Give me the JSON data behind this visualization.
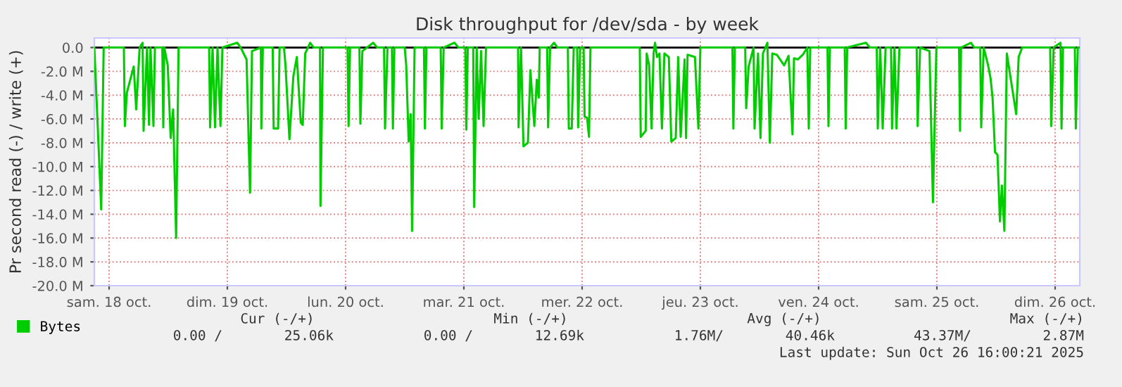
{
  "chart_data": {
    "type": "line",
    "title": "Disk throughput for /dev/sda - by week",
    "ylabel": "Pr second read (-) / write (+)",
    "x": [
      "2025-10-17T21:00",
      "2025-10-17T21:42",
      "2025-10-17T22:24",
      "2025-10-17T22:54",
      "2025-10-18T03:00",
      "2025-10-18T03:12",
      "2025-10-18T03:36",
      "2025-10-18T05:00",
      "2025-10-18T05:30",
      "2025-10-18T06:12",
      "2025-10-18T06:48",
      "2025-10-18T07:00",
      "2025-10-18T07:42",
      "2025-10-18T08:06",
      "2025-10-18T08:24",
      "2025-10-18T09:00",
      "2025-10-18T09:18",
      "2025-10-18T10:48",
      "2025-10-18T11:00",
      "2025-10-18T11:12",
      "2025-10-18T11:54",
      "2025-10-18T12:30",
      "2025-10-18T13:00",
      "2025-10-18T13:36",
      "2025-10-18T14:06",
      "2025-10-18T20:18",
      "2025-10-18T20:30",
      "2025-10-18T21:00",
      "2025-10-18T21:30",
      "2025-10-18T22:00",
      "2025-10-18T22:36",
      "2025-10-18T23:00",
      "2025-10-19T02:00",
      "2025-10-19T02:42",
      "2025-10-19T03:54",
      "2025-10-19T04:36",
      "2025-10-19T05:00",
      "2025-10-19T06:48",
      "2025-10-19T06:54",
      "2025-10-19T07:12",
      "2025-10-19T09:12",
      "2025-10-19T09:24",
      "2025-10-19T10:18",
      "2025-10-19T10:36",
      "2025-10-19T11:30",
      "2025-10-19T11:48",
      "2025-10-19T12:36",
      "2025-10-19T13:24",
      "2025-10-19T14:06",
      "2025-10-19T14:54",
      "2025-10-19T15:18",
      "2025-10-19T15:48",
      "2025-10-19T16:48",
      "2025-10-19T17:30",
      "2025-10-19T18:48",
      "2025-10-19T18:54",
      "2025-10-19T19:24",
      "2025-10-20T00:24",
      "2025-10-20T00:36",
      "2025-10-20T00:54",
      "2025-10-20T02:48",
      "2025-10-20T03:00",
      "2025-10-20T03:24",
      "2025-10-20T05:36",
      "2025-10-20T06:24",
      "2025-10-20T07:48",
      "2025-10-20T08:00",
      "2025-10-20T08:30",
      "2025-10-20T09:24",
      "2025-10-20T09:36",
      "2025-10-20T09:54",
      "2025-10-20T12:00",
      "2025-10-20T12:18",
      "2025-10-20T12:48",
      "2025-10-20T13:12",
      "2025-10-20T13:30",
      "2025-10-20T14:00",
      "2025-10-20T15:54",
      "2025-10-20T16:06",
      "2025-10-20T16:24",
      "2025-10-20T19:18",
      "2025-10-20T19:30",
      "2025-10-20T19:54",
      "2025-10-20T22:06",
      "2025-10-20T22:54",
      "2025-10-21T00:18",
      "2025-10-21T00:30",
      "2025-10-21T00:48",
      "2025-10-21T01:54",
      "2025-10-21T02:06",
      "2025-10-21T02:36",
      "2025-10-21T03:00",
      "2025-10-21T03:30",
      "2025-10-21T04:00",
      "2025-10-21T04:30",
      "2025-10-21T11:00",
      "2025-10-21T11:06",
      "2025-10-21T11:36",
      "2025-10-21T12:06",
      "2025-10-21T13:00",
      "2025-10-21T13:30",
      "2025-10-21T14:18",
      "2025-10-21T14:48",
      "2025-10-21T15:12",
      "2025-10-21T15:24",
      "2025-10-21T16:54",
      "2025-10-21T17:06",
      "2025-10-21T17:30",
      "2025-10-21T18:18",
      "2025-10-21T19:00",
      "2025-10-21T21:06",
      "2025-10-21T21:18",
      "2025-10-21T21:54",
      "2025-10-21T22:18",
      "2025-10-21T23:00",
      "2025-10-21T23:12",
      "2025-10-21T23:36",
      "2025-10-22T00:18",
      "2025-10-22T00:30",
      "2025-10-22T01:00",
      "2025-10-22T01:24",
      "2025-10-22T01:42",
      "2025-10-22T11:42",
      "2025-10-22T11:54",
      "2025-10-22T12:54",
      "2025-10-22T13:06",
      "2025-10-22T13:36",
      "2025-10-22T14:06",
      "2025-10-22T14:30",
      "2025-10-22T14:48",
      "2025-10-22T15:12",
      "2025-10-22T15:42",
      "2025-10-22T16:12",
      "2025-10-22T16:42",
      "2025-10-22T17:36",
      "2025-10-22T18:06",
      "2025-10-22T19:00",
      "2025-10-22T19:30",
      "2025-10-22T20:00",
      "2025-10-22T20:48",
      "2025-10-22T21:06",
      "2025-10-22T21:24",
      "2025-10-22T22:54",
      "2025-10-22T23:36",
      "2025-10-23T00:00",
      "2025-10-23T06:30",
      "2025-10-23T06:42",
      "2025-10-23T07:00",
      "2025-10-23T09:06",
      "2025-10-23T09:18",
      "2025-10-23T09:48",
      "2025-10-23T10:48",
      "2025-10-23T11:00",
      "2025-10-23T11:42",
      "2025-10-23T12:12",
      "2025-10-23T12:42",
      "2025-10-23T13:36",
      "2025-10-23T14:06",
      "2025-10-23T14:36",
      "2025-10-23T15:30",
      "2025-10-23T17:00",
      "2025-10-23T17:54",
      "2025-10-23T18:42",
      "2025-10-23T19:00",
      "2025-10-23T19:48",
      "2025-10-23T20:48",
      "2025-10-23T21:42",
      "2025-10-23T22:00",
      "2025-10-23T22:18",
      "2025-10-24T01:48",
      "2025-10-24T02:00",
      "2025-10-24T02:18",
      "2025-10-24T05:18",
      "2025-10-24T05:30",
      "2025-10-24T05:48",
      "2025-10-24T09:36",
      "2025-10-24T10:24",
      "2025-10-24T11:48",
      "2025-10-24T12:00",
      "2025-10-24T12:30",
      "2025-10-24T13:00",
      "2025-10-24T13:36",
      "2025-10-24T14:42",
      "2025-10-24T14:54",
      "2025-10-24T15:24",
      "2025-10-24T15:48",
      "2025-10-24T16:24",
      "2025-10-24T19:54",
      "2025-10-24T20:06",
      "2025-10-24T20:36",
      "2025-10-24T22:30",
      "2025-10-24T23:12",
      "2025-10-24T23:54",
      "2025-10-25T04:30",
      "2025-10-25T04:42",
      "2025-10-25T04:54",
      "2025-10-25T06:54",
      "2025-10-25T07:36",
      "2025-10-25T08:48",
      "2025-10-25T09:00",
      "2025-10-25T09:30",
      "2025-10-25T10:24",
      "2025-10-25T10:54",
      "2025-10-25T11:18",
      "2025-10-25T11:48",
      "2025-10-25T12:18",
      "2025-10-25T12:48",
      "2025-10-25T13:12",
      "2025-10-25T13:42",
      "2025-10-25T14:12",
      "2025-10-25T16:06",
      "2025-10-25T16:36",
      "2025-10-25T17:18",
      "2025-10-25T23:00",
      "2025-10-25T23:12",
      "2025-10-25T23:42",
      "2025-10-26T01:06",
      "2025-10-26T01:18",
      "2025-10-26T01:36",
      "2025-10-26T04:00",
      "2025-10-26T04:12",
      "2025-10-26T04:36",
      "2025-10-26T05:00"
    ],
    "series": [
      {
        "name": "Bytes",
        "color": "#00cc00",
        "values": [
          0,
          -6.7,
          -13.6,
          0,
          0,
          -6.6,
          -3.8,
          -1.6,
          -5.2,
          0,
          0.4,
          -7,
          0,
          -6.5,
          0,
          -6.6,
          0,
          0,
          -6.7,
          0,
          -1.5,
          -7.6,
          -5.2,
          -16,
          0,
          0,
          -6.7,
          0,
          -6.7,
          0,
          -6.6,
          0,
          0.4,
          0,
          -1,
          -12.2,
          -0.3,
          0,
          -6.8,
          0,
          0,
          -6.8,
          -6.8,
          0,
          0,
          -1.5,
          -7.7,
          -2.4,
          -0.8,
          -6.3,
          -6.5,
          -0.5,
          0.4,
          0,
          0,
          -13.3,
          0,
          0,
          -6.6,
          0,
          0,
          -6.4,
          -0.3,
          0.4,
          0,
          0,
          -6.8,
          0,
          0,
          -6.8,
          0,
          0,
          -1.5,
          -7.9,
          -5.6,
          -15.4,
          0,
          0,
          -6.8,
          0,
          0,
          -6.8,
          0,
          0.4,
          0,
          0,
          -6.9,
          0,
          0,
          -13.4,
          0,
          -6,
          -0.3,
          -6.6,
          0,
          0,
          -6.7,
          0,
          -8.3,
          -8,
          -1.9,
          -6.6,
          -2.7,
          -4.2,
          0,
          0,
          -6.7,
          0,
          0.4,
          0,
          0,
          -6.8,
          -6.8,
          0,
          0,
          -6.7,
          0,
          0,
          -5.8,
          -5.9,
          -7.5,
          0,
          0,
          -7.5,
          -7,
          -0.5,
          -1.5,
          -6.8,
          -0.5,
          0.4,
          -0.8,
          -0.5,
          -6.8,
          -0.5,
          -0.8,
          -7.9,
          -7.6,
          -0.8,
          -7.5,
          -1,
          -7.6,
          -0.6,
          -0.8,
          -6.8,
          0,
          0,
          -6.8,
          0,
          0,
          -5.1,
          -1.6,
          0,
          -6.8,
          -0.5,
          -7.6,
          -0.5,
          0.4,
          -8,
          -0.5,
          -0.6,
          -1.5,
          -0.7,
          -7.3,
          -0.9,
          -1,
          -0.6,
          0,
          -6.8,
          0,
          0,
          -6.6,
          0,
          0,
          -6.8,
          0,
          0.4,
          0,
          0,
          -6.8,
          0,
          -6.8,
          0,
          0,
          -6.8,
          0,
          -6.8,
          0,
          0,
          -6.6,
          0,
          -0.3,
          -13,
          0,
          0,
          -7,
          0,
          0.4,
          0,
          0,
          -6.7,
          0,
          -1.5,
          -2.6,
          -4.2,
          -8.8,
          -9,
          -14.6,
          -11.6,
          -15.4,
          -0.5,
          -5.6,
          -0.8,
          0,
          0,
          -6.6,
          0,
          0.4,
          -6.8,
          0,
          0,
          -6.8,
          0,
          0
        ]
      }
    ],
    "xlim": [
      "2025-10-17T21:00",
      "2025-10-26T05:00"
    ],
    "xticks": [
      {
        "value": "2025-10-18",
        "label": "sam. 18 oct."
      },
      {
        "value": "2025-10-19",
        "label": "dim. 19 oct."
      },
      {
        "value": "2025-10-20",
        "label": "lun. 20 oct."
      },
      {
        "value": "2025-10-21",
        "label": "mar. 21 oct."
      },
      {
        "value": "2025-10-22",
        "label": "mer. 22 oct."
      },
      {
        "value": "2025-10-23",
        "label": "jeu. 23 oct."
      },
      {
        "value": "2025-10-24",
        "label": "ven. 24 oct."
      },
      {
        "value": "2025-10-25",
        "label": "sam. 25 oct."
      },
      {
        "value": "2025-10-26",
        "label": "dim. 26 oct."
      }
    ],
    "ylim": [
      -20,
      0.8
    ],
    "yticks": [
      {
        "value": -20,
        "label": "-20.0 M"
      },
      {
        "value": -18,
        "label": "-18.0 M"
      },
      {
        "value": -16,
        "label": "-16.0 M"
      },
      {
        "value": -14,
        "label": "-14.0 M"
      },
      {
        "value": -12,
        "label": "-12.0 M"
      },
      {
        "value": -10,
        "label": "-10.0 M"
      },
      {
        "value": -8,
        "label": "-8.0 M"
      },
      {
        "value": -6,
        "label": "-6.0 M"
      },
      {
        "value": -4,
        "label": "-4.0 M"
      },
      {
        "value": -2,
        "label": "-2.0 M"
      },
      {
        "value": 0,
        "label": "0.0"
      }
    ],
    "grid": true,
    "legend": "bottom left",
    "ref_lines": [
      {
        "axis": "y",
        "value": 0,
        "color": "#000000"
      }
    ],
    "annotations": [
      "Cur (-/+)",
      "Min (-/+)",
      "Avg (-/+)",
      "Max (-/+)",
      "0.00 /",
      "25.06k",
      "0.00 /",
      "12.69k",
      "1.76M/",
      "40.46k",
      "43.37M/",
      "2.87M",
      "Last update: Sun Oct 26 16:00:21 2025"
    ]
  }
}
